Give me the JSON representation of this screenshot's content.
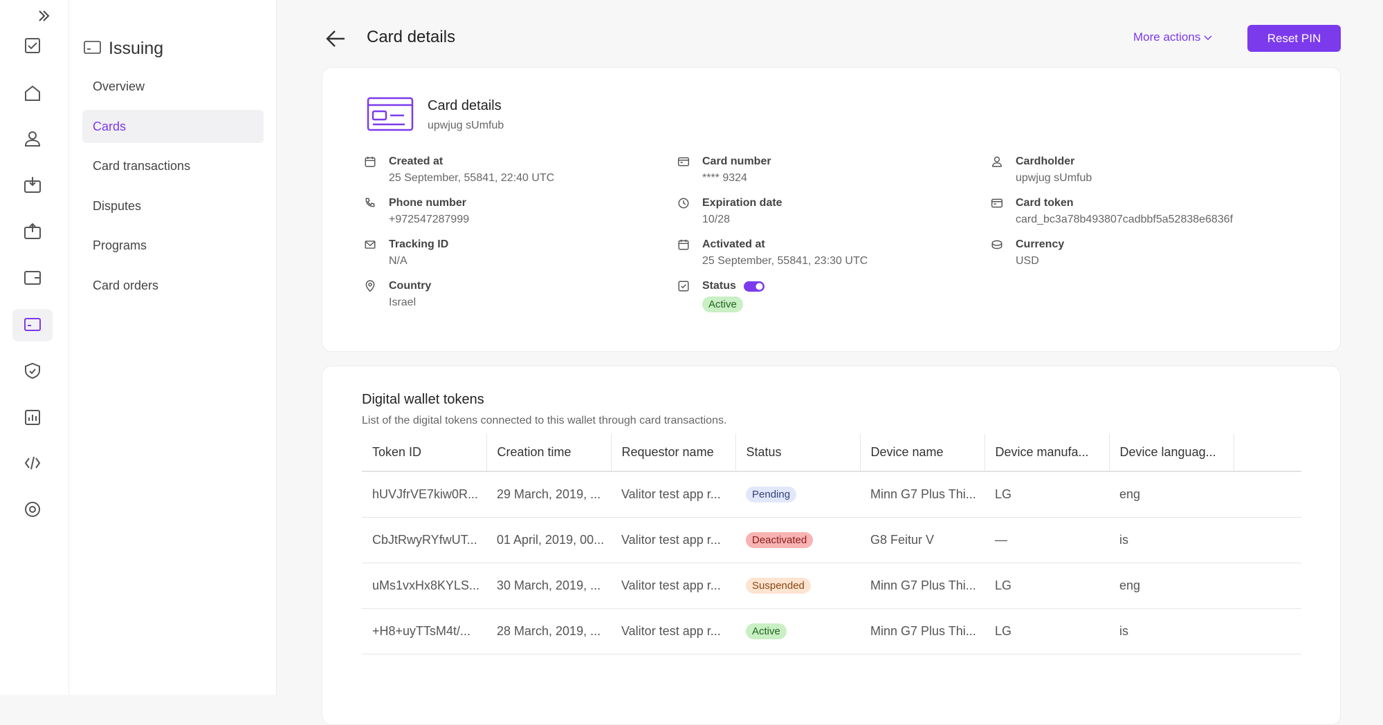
{
  "sidebar": {
    "title": "Issuing",
    "items": [
      "Overview",
      "Cards",
      "Card transactions",
      "Disputes",
      "Programs",
      "Card orders"
    ]
  },
  "header": {
    "title": "Card details",
    "more_actions": "More actions",
    "button": "Reset PIN"
  },
  "card": {
    "title": "Card details",
    "subtitle": "upwjug sUmfub",
    "columns": [
      [
        {
          "label": "Created at",
          "value": "25 September, 55841, 22:40 UTC"
        },
        {
          "label": "Phone number",
          "value": "+972547287999"
        },
        {
          "label": "Tracking ID",
          "value": "N/A"
        },
        {
          "label": "Country",
          "value": "Israel"
        }
      ],
      [
        {
          "label": "Card number",
          "value": "**** 9324"
        },
        {
          "label": "Expiration date",
          "value": "10/28"
        },
        {
          "label": "Activated at",
          "value": "25 September, 55841, 23:30 UTC"
        },
        {
          "label": "Status",
          "value": "Active"
        }
      ],
      [
        {
          "label": "Cardholder",
          "value": "upwjug sUmfub"
        },
        {
          "label": "Card token",
          "value": "card_bc3a78b493807cadbbf5a52838e6836f"
        },
        {
          "label": "Currency",
          "value": "USD"
        }
      ]
    ]
  },
  "wallet": {
    "title": "Digital wallet tokens",
    "description": "List of the digital tokens connected to this wallet through card transactions.",
    "columns": [
      "Token ID",
      "Creation time",
      "Requestor name",
      "Status",
      "Device name",
      "Device manufa...",
      "Device languag..."
    ],
    "rows": [
      [
        "hUVJfrVE7kiw0R...",
        "29 March, 2019, ...",
        "Valitor test app r...",
        "Pending",
        "Minn G7 Plus Thi...",
        "LG",
        "eng"
      ],
      [
        "CbJtRwyRYfwUT...",
        "01 April, 2019, 00...",
        "Valitor test app r...",
        "Deactivated",
        "G8 Feitur V",
        "—",
        "is"
      ],
      [
        "uMs1vxHx8KYLS...",
        "30 March, 2019, ...",
        "Valitor test app r...",
        "Suspended",
        "Minn G7 Plus Thi...",
        "LG",
        "eng"
      ],
      [
        "+H8+uyTTsM4t/...",
        "28 March, 2019, ...",
        "Valitor test app r...",
        "Active",
        "Minn G7 Plus Thi...",
        "LG",
        "is"
      ]
    ]
  }
}
